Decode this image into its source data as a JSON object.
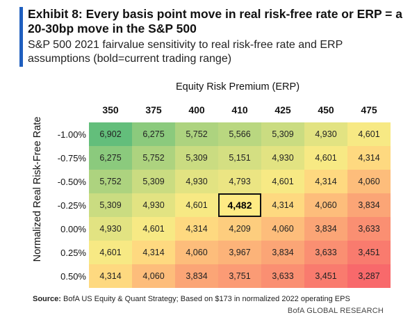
{
  "header": {
    "title": "Exhibit 8: Every basis point move in real risk-free rate or ERP = a 20-30bp move in the S&P 500",
    "subtitle": "S&P 500 2021 fairvalue sensitivity to real risk-free rate and ERP assumptions (bold=current trading range)"
  },
  "chart_data": {
    "type": "heatmap",
    "col_axis_title": "Equity Risk Premium (ERP)",
    "row_axis_title": "Normalized Real Risk-Free Rate",
    "columns": [
      "350",
      "375",
      "400",
      "410",
      "425",
      "450",
      "475"
    ],
    "rows": [
      "-1.00%",
      "-0.75%",
      "-0.50%",
      "-0.25%",
      "0.00%",
      "0.25%",
      "0.50%"
    ],
    "values": [
      [
        6902,
        6275,
        5752,
        5566,
        5309,
        4930,
        4601
      ],
      [
        6275,
        5752,
        5309,
        5151,
        4930,
        4601,
        4314
      ],
      [
        5752,
        5309,
        4930,
        4793,
        4601,
        4314,
        4060
      ],
      [
        5309,
        4930,
        4601,
        4482,
        4314,
        4060,
        3834
      ],
      [
        4930,
        4601,
        4314,
        4209,
        4060,
        3834,
        3633
      ],
      [
        4601,
        4314,
        4060,
        3967,
        3834,
        3633,
        3451
      ],
      [
        4314,
        4060,
        3834,
        3751,
        3633,
        3451,
        3287
      ]
    ],
    "highlight": {
      "row": 3,
      "col": 3
    },
    "color_scale": {
      "low": "#f8696b",
      "mid": "#ffeb84",
      "high": "#63be7b"
    }
  },
  "footer": {
    "source_label": "Source:",
    "source_text": "BofA US Equity  & Quant Strategy; Based on $173 in normalized 2022 operating EPS",
    "brand": "BofA GLOBAL RESEARCH"
  }
}
